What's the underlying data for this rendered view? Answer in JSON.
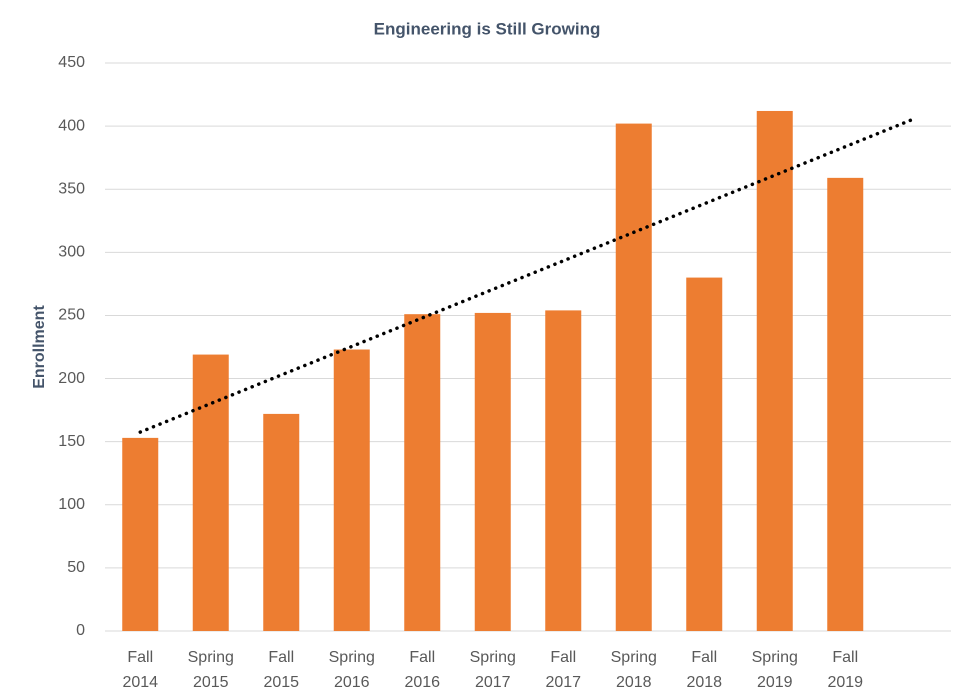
{
  "chart_data": {
    "type": "bar",
    "title": "Engineering is Still Growing",
    "y_label": "Enrollment",
    "categories": [
      [
        "Fall",
        "2014"
      ],
      [
        "Spring",
        "2015"
      ],
      [
        "Fall",
        "2015"
      ],
      [
        "Spring",
        "2016"
      ],
      [
        "Fall",
        "2016"
      ],
      [
        "Spring",
        "2017"
      ],
      [
        "Fall",
        "2017"
      ],
      [
        "Spring",
        "2018"
      ],
      [
        "Fall",
        "2018"
      ],
      [
        "Spring",
        "2019"
      ],
      [
        "Fall",
        "2019"
      ]
    ],
    "values": [
      153,
      219,
      172,
      223,
      251,
      252,
      254,
      402,
      280,
      412,
      359
    ],
    "color": "#ed7d31",
    "trendline": {
      "type": "linear",
      "style": "dotted",
      "color": "#000000",
      "forward": 1
    },
    "ylim": [
      0,
      450
    ],
    "yticks": [
      0,
      50,
      100,
      150,
      200,
      250,
      300,
      350,
      400,
      450
    ],
    "grid": true
  }
}
